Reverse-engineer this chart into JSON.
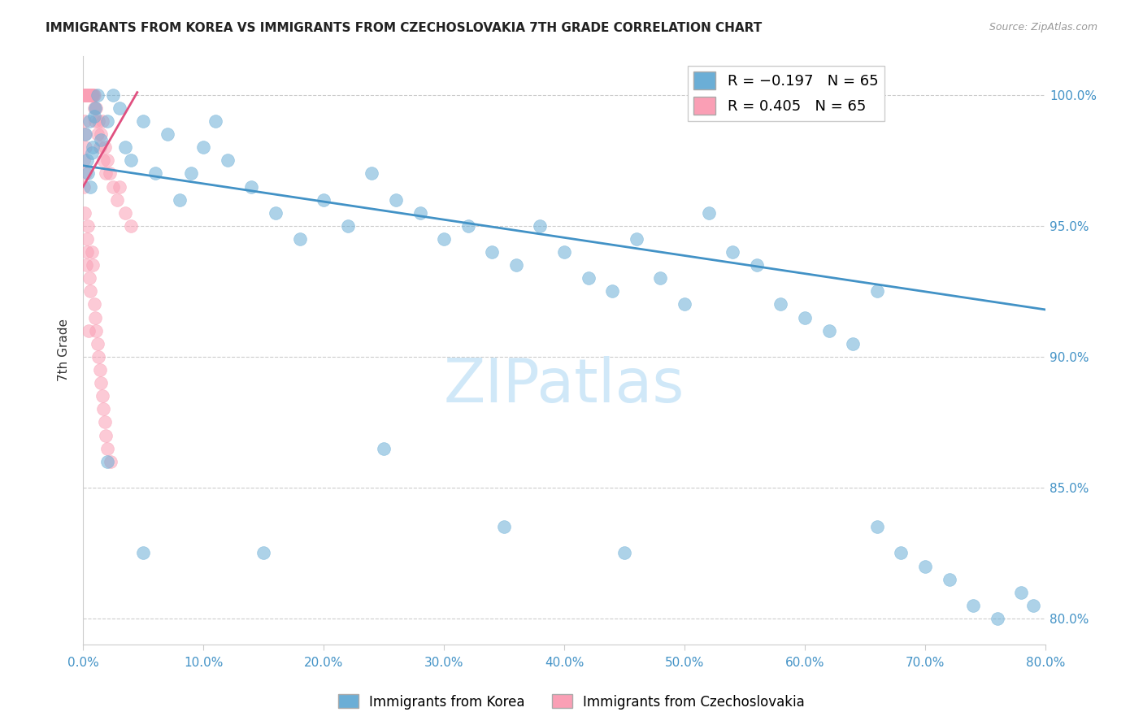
{
  "title": "IMMIGRANTS FROM KOREA VS IMMIGRANTS FROM CZECHOSLOVAKIA 7TH GRADE CORRELATION CHART",
  "source": "Source: ZipAtlas.com",
  "ylabel": "7th Grade",
  "yticks": [
    80.0,
    85.0,
    90.0,
    95.0,
    100.0
  ],
  "xticks": [
    0.0,
    10.0,
    20.0,
    30.0,
    40.0,
    50.0,
    60.0,
    70.0,
    80.0
  ],
  "xlim": [
    0.0,
    80.0
  ],
  "ylim": [
    79.0,
    101.5
  ],
  "legend_blue": "R = −0.197   N = 65",
  "legend_pink": "R = 0.405   N = 65",
  "blue_color": "#6baed6",
  "pink_color": "#fa9fb5",
  "trend_blue": "#4292c6",
  "trend_pink": "#e05080",
  "watermark": "ZIPatlas",
  "watermark_color": "#d0e8f8",
  "axis_label_color": "#4292c6",
  "korea_x": [
    0.3,
    0.5,
    0.2,
    0.4,
    0.6,
    0.8,
    1.0,
    1.2,
    0.7,
    0.9,
    1.5,
    2.0,
    2.5,
    3.0,
    3.5,
    4.0,
    5.0,
    6.0,
    7.0,
    8.0,
    9.0,
    10.0,
    11.0,
    12.0,
    14.0,
    16.0,
    18.0,
    20.0,
    22.0,
    24.0,
    26.0,
    28.0,
    30.0,
    32.0,
    34.0,
    36.0,
    38.0,
    40.0,
    42.0,
    44.0,
    46.0,
    48.0,
    50.0,
    52.0,
    54.0,
    56.0,
    58.0,
    60.0,
    62.0,
    64.0,
    66.0,
    68.0,
    70.0,
    72.0,
    74.0,
    76.0,
    78.0,
    79.0,
    66.0,
    45.0,
    35.0,
    25.0,
    15.0,
    5.0,
    2.0
  ],
  "korea_y": [
    97.5,
    99.0,
    98.5,
    97.0,
    96.5,
    98.0,
    99.5,
    100.0,
    97.8,
    99.2,
    98.3,
    99.0,
    100.0,
    99.5,
    98.0,
    97.5,
    99.0,
    97.0,
    98.5,
    96.0,
    97.0,
    98.0,
    99.0,
    97.5,
    96.5,
    95.5,
    94.5,
    96.0,
    95.0,
    97.0,
    96.0,
    95.5,
    94.5,
    95.0,
    94.0,
    93.5,
    95.0,
    94.0,
    93.0,
    92.5,
    94.5,
    93.0,
    92.0,
    95.5,
    94.0,
    93.5,
    92.0,
    91.5,
    91.0,
    90.5,
    83.5,
    82.5,
    82.0,
    81.5,
    80.5,
    80.0,
    81.0,
    80.5,
    92.5,
    82.5,
    83.5,
    86.5,
    82.5,
    82.5,
    86.0
  ],
  "czech_x": [
    0.05,
    0.1,
    0.15,
    0.2,
    0.25,
    0.3,
    0.35,
    0.4,
    0.45,
    0.5,
    0.55,
    0.6,
    0.65,
    0.7,
    0.75,
    0.8,
    0.85,
    0.9,
    0.95,
    1.0,
    1.1,
    1.2,
    1.3,
    1.4,
    1.5,
    1.6,
    1.7,
    1.8,
    1.9,
    2.0,
    2.2,
    2.5,
    2.8,
    3.0,
    3.5,
    4.0,
    0.1,
    0.12,
    0.08,
    0.05,
    0.18,
    0.22,
    0.15,
    0.3,
    0.25,
    0.4,
    0.35,
    0.5,
    0.6,
    0.7,
    0.8,
    0.9,
    1.0,
    1.1,
    1.2,
    1.3,
    1.4,
    1.5,
    1.6,
    1.7,
    1.8,
    1.9,
    2.0,
    2.3,
    0.45
  ],
  "czech_y": [
    100.0,
    100.0,
    100.0,
    100.0,
    100.0,
    100.0,
    100.0,
    100.0,
    100.0,
    100.0,
    100.0,
    100.0,
    100.0,
    100.0,
    100.0,
    100.0,
    100.0,
    100.0,
    99.5,
    99.0,
    99.5,
    98.5,
    99.0,
    98.0,
    98.5,
    99.0,
    97.5,
    98.0,
    97.0,
    97.5,
    97.0,
    96.5,
    96.0,
    96.5,
    95.5,
    95.0,
    99.0,
    98.5,
    97.5,
    96.5,
    98.0,
    97.0,
    95.5,
    94.5,
    93.5,
    95.0,
    94.0,
    93.0,
    92.5,
    94.0,
    93.5,
    92.0,
    91.5,
    91.0,
    90.5,
    90.0,
    89.5,
    89.0,
    88.5,
    88.0,
    87.5,
    87.0,
    86.5,
    86.0,
    91.0
  ],
  "blue_trend_x": [
    0.0,
    80.0
  ],
  "blue_trend_y": [
    97.3,
    91.8
  ],
  "pink_trend_x": [
    0.0,
    4.5
  ],
  "pink_trend_y": [
    96.5,
    100.1
  ]
}
